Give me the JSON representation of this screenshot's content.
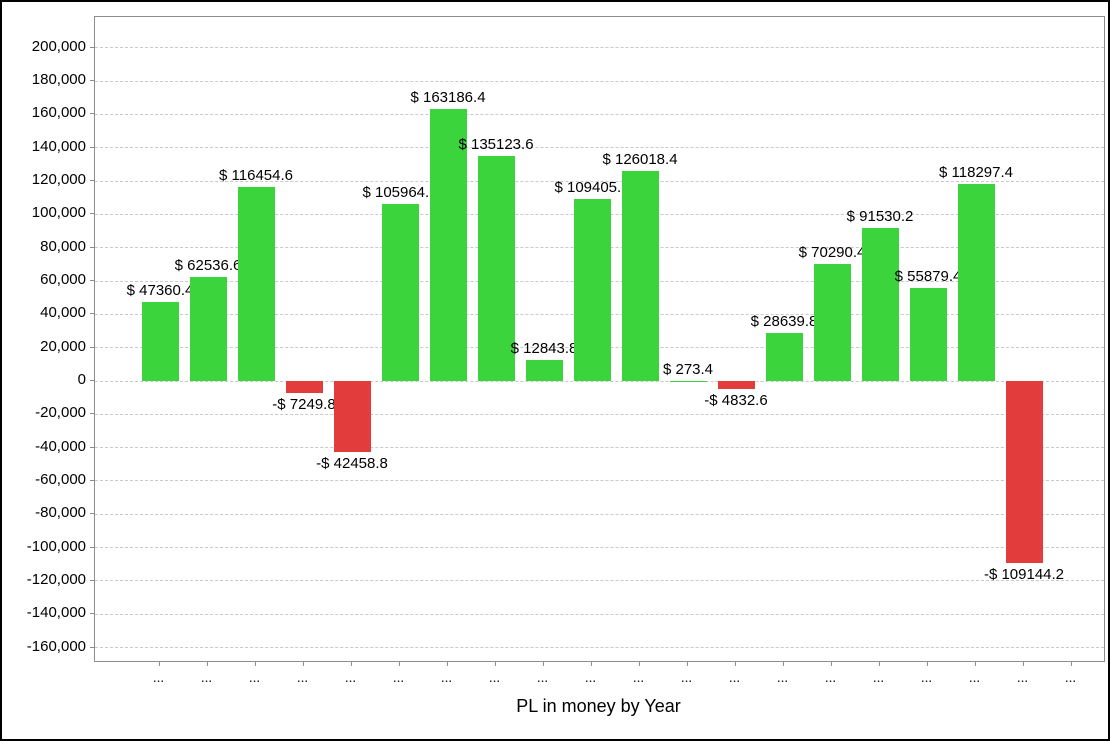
{
  "chart_data": {
    "type": "bar",
    "title": "PL in money by Year",
    "legend_position": "none",
    "grid": "horizontal-dashed",
    "colors": {
      "positive_bar": "#3CD43C",
      "negative_bar": "#E33C3C",
      "grid_line": "#C9C9C9",
      "axis_line": "#8C8C8C",
      "label_text": "#000000"
    },
    "y_axis": {
      "min": -160000,
      "max": 200000,
      "step": 20000,
      "tick_labels": [
        "200,000",
        "180,000",
        "160,000",
        "140,000",
        "120,000",
        "100,000",
        "80,000",
        "60,000",
        "40,000",
        "20,000",
        "0",
        "-20,000",
        "-40,000",
        "-60,000",
        "-80,000",
        "-100,000",
        "-120,000",
        "-140,000",
        "-160,000"
      ]
    },
    "x_axis": {
      "tick_label": "...",
      "tick_count": 20
    },
    "bars": [
      {
        "value": 47360.4,
        "label": "$ 47360.4",
        "sign": "positive"
      },
      {
        "value": 62536.6,
        "label": "$ 62536.6",
        "sign": "positive"
      },
      {
        "value": 116454.6,
        "label": "$ 116454.6",
        "sign": "positive"
      },
      {
        "value": -7249.8,
        "label": "-$ 7249.8",
        "sign": "negative"
      },
      {
        "value": -42458.8,
        "label": "-$ 42458.8",
        "sign": "negative"
      },
      {
        "value": 105964.2,
        "label": "$ 105964.2",
        "sign": "positive"
      },
      {
        "value": 163186.4,
        "label": "$ 163186.4",
        "sign": "positive"
      },
      {
        "value": 135123.6,
        "label": "$ 135123.6",
        "sign": "positive"
      },
      {
        "value": 12843.8,
        "label": "$ 12843.8",
        "sign": "positive"
      },
      {
        "value": 109405.2,
        "label": "$ 109405.2",
        "sign": "positive"
      },
      {
        "value": 126018.4,
        "label": "$ 126018.4",
        "sign": "positive"
      },
      {
        "value": 273.4,
        "label": "$ 273.4",
        "sign": "positive"
      },
      {
        "value": -4832.6,
        "label": "-$ 4832.6",
        "sign": "negative"
      },
      {
        "value": 28639.8,
        "label": "$ 28639.8",
        "sign": "positive"
      },
      {
        "value": 70290.4,
        "label": "$ 70290.4",
        "sign": "positive"
      },
      {
        "value": 91530.2,
        "label": "$ 91530.2",
        "sign": "positive"
      },
      {
        "value": 55879.4,
        "label": "$ 55879.4",
        "sign": "positive"
      },
      {
        "value": 118297.4,
        "label": "$ 118297.4",
        "sign": "positive"
      },
      {
        "value": -109144.2,
        "label": "-$ 109144.2",
        "sign": "negative"
      }
    ]
  }
}
